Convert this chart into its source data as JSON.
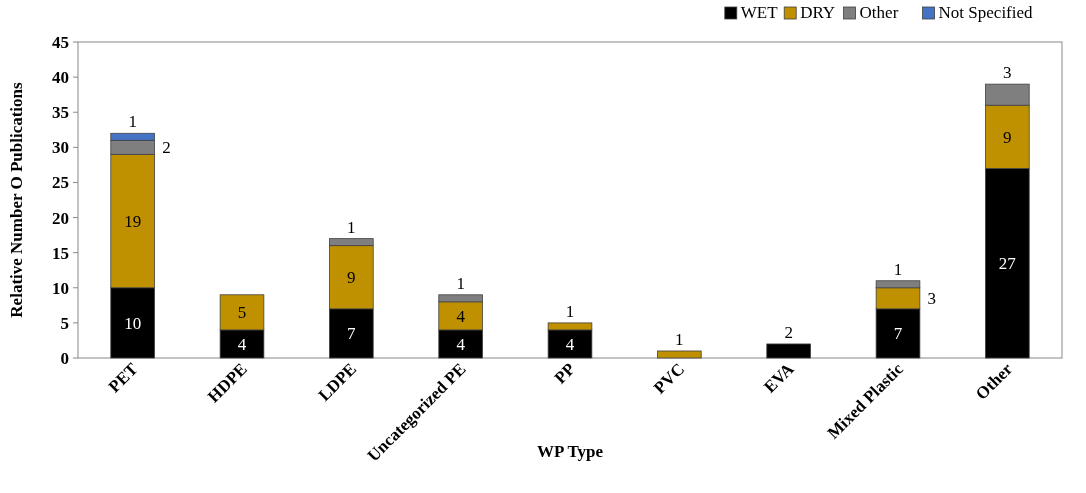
{
  "chart_data": {
    "type": "bar",
    "stacked": true,
    "xlabel": "WP Type",
    "ylabel": "Relative Number O Publications",
    "categories": [
      "PET",
      "HDPE",
      "LDPE",
      "Uncategorized PE",
      "PP",
      "PVC",
      "EVA",
      "Mixed Plastic",
      "Other"
    ],
    "series": [
      {
        "name": "WET",
        "color": "#000000",
        "values": [
          10,
          4,
          7,
          4,
          4,
          0,
          2,
          7,
          27
        ],
        "value_labels": [
          "10",
          "4",
          "7",
          "4",
          "4",
          null,
          "2",
          "7",
          "27"
        ]
      },
      {
        "name": "DRY",
        "color": "#bf9000",
        "values": [
          19,
          5,
          9,
          4,
          1,
          1,
          0,
          3,
          9
        ],
        "value_labels": [
          "19",
          "5",
          "9",
          "4",
          "1",
          "1",
          null,
          "3",
          "9"
        ]
      },
      {
        "name": "Other",
        "color": "#7f7f7f",
        "values": [
          2,
          0,
          1,
          1,
          0,
          0,
          0,
          1,
          3
        ],
        "value_labels": [
          "2",
          null,
          "1",
          "1",
          null,
          null,
          null,
          "1",
          "3"
        ]
      },
      {
        "name": "Not Specified",
        "color": "#4472c4",
        "values": [
          1,
          0,
          0,
          0,
          0,
          0,
          0,
          0,
          0
        ],
        "value_labels": [
          "1",
          null,
          null,
          null,
          null,
          null,
          null,
          null,
          null
        ]
      }
    ],
    "ylim": [
      0,
      45
    ],
    "yticks": [
      0,
      5,
      10,
      15,
      20,
      25,
      30,
      35,
      40,
      45
    ],
    "grid": false,
    "legend": "top right"
  }
}
